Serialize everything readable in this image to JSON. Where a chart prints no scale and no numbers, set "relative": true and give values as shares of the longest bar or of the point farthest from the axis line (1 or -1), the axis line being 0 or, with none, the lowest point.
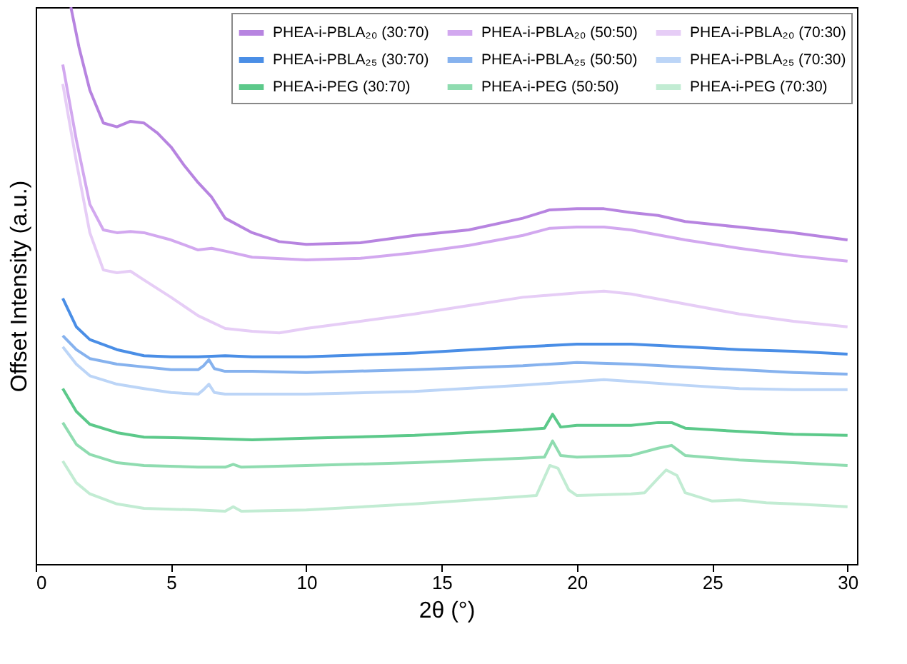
{
  "chart_data": {
    "type": "line",
    "xlabel": "2θ (°)",
    "ylabel": "Offset Intensity (a.u.)",
    "relative": true,
    "xlim": [
      0,
      30.35
    ],
    "xticks": [
      0,
      5,
      10,
      15,
      20,
      25,
      30
    ],
    "grid": false,
    "legend": "top right",
    "line_style": "solid",
    "marker": "none",
    "series": [
      {
        "name": "PHEA-i-PBLA₂₀ (30:70)",
        "color": "#b784e0",
        "x": [
          1.3,
          1.6,
          2,
          2.5,
          3,
          3.5,
          4,
          4.5,
          5,
          5.5,
          6,
          6.5,
          7,
          8,
          9,
          10,
          12,
          14,
          16,
          18,
          19,
          20,
          21,
          22,
          23,
          24,
          26,
          28,
          30
        ],
        "values": [
          1.0,
          0.928,
          0.851,
          0.792,
          0.785,
          0.795,
          0.792,
          0.774,
          0.749,
          0.715,
          0.685,
          0.659,
          0.621,
          0.595,
          0.579,
          0.574,
          0.577,
          0.59,
          0.6,
          0.621,
          0.636,
          0.638,
          0.638,
          0.631,
          0.626,
          0.615,
          0.605,
          0.595,
          0.582
        ]
      },
      {
        "name": "PHEA-i-PBLA₂₀ (50:50)",
        "color": "#d2a8ef",
        "x": [
          1,
          1.5,
          2,
          2.5,
          3,
          3.5,
          4,
          5,
          6,
          6.5,
          7,
          8,
          10,
          12,
          14,
          16,
          18,
          19,
          20,
          21,
          22,
          24,
          26,
          28,
          30
        ],
        "values": [
          0.897,
          0.762,
          0.646,
          0.6,
          0.595,
          0.597,
          0.595,
          0.582,
          0.564,
          0.567,
          0.562,
          0.551,
          0.546,
          0.549,
          0.559,
          0.572,
          0.59,
          0.603,
          0.605,
          0.605,
          0.6,
          0.582,
          0.567,
          0.554,
          0.544
        ]
      },
      {
        "name": "PHEA-i-PBLA₂₀ (70:30)",
        "color": "#e6cdf6",
        "x": [
          1,
          1.5,
          2,
          2.5,
          3,
          3.5,
          4,
          5,
          6,
          7,
          8,
          9,
          10,
          12,
          14,
          16,
          18,
          20,
          21,
          22,
          24,
          26,
          28,
          30
        ],
        "values": [
          0.862,
          0.723,
          0.595,
          0.528,
          0.523,
          0.526,
          0.51,
          0.479,
          0.446,
          0.423,
          0.418,
          0.415,
          0.423,
          0.436,
          0.449,
          0.464,
          0.479,
          0.487,
          0.49,
          0.485,
          0.467,
          0.449,
          0.436,
          0.426
        ]
      },
      {
        "name": "PHEA-i-PBLA₂₅ (30:70)",
        "color": "#4a8ee6",
        "x": [
          1,
          1.5,
          2,
          3,
          4,
          5,
          6,
          7,
          8,
          10,
          14,
          18,
          20,
          22,
          24,
          26,
          28,
          30
        ],
        "values": [
          0.477,
          0.426,
          0.403,
          0.385,
          0.374,
          0.372,
          0.372,
          0.374,
          0.372,
          0.372,
          0.379,
          0.39,
          0.395,
          0.395,
          0.39,
          0.385,
          0.382,
          0.377
        ]
      },
      {
        "name": "PHEA-i-PBLA₂₅ (50:50)",
        "color": "#86b2ee",
        "x": [
          1,
          1.5,
          2,
          3,
          4,
          5,
          6,
          6.2,
          6.4,
          6.6,
          7,
          8,
          10,
          14,
          18,
          20,
          22,
          24,
          26,
          28,
          30
        ],
        "values": [
          0.41,
          0.385,
          0.369,
          0.359,
          0.354,
          0.349,
          0.349,
          0.356,
          0.367,
          0.351,
          0.346,
          0.346,
          0.344,
          0.349,
          0.356,
          0.362,
          0.359,
          0.354,
          0.349,
          0.344,
          0.341
        ]
      },
      {
        "name": "PHEA-i-PBLA₂₅ (70:30)",
        "color": "#bcd5f7",
        "x": [
          1,
          1.5,
          2,
          3,
          4,
          5,
          6,
          6.2,
          6.4,
          6.6,
          7,
          8,
          10,
          14,
          18,
          20,
          21,
          22,
          24,
          26,
          28,
          30
        ],
        "values": [
          0.39,
          0.359,
          0.338,
          0.323,
          0.315,
          0.308,
          0.305,
          0.313,
          0.323,
          0.308,
          0.305,
          0.305,
          0.305,
          0.31,
          0.321,
          0.328,
          0.331,
          0.328,
          0.321,
          0.315,
          0.313,
          0.313
        ]
      },
      {
        "name": "PHEA-i-PEG (30:70)",
        "color": "#5cc98a",
        "x": [
          1,
          1.5,
          2,
          3,
          4,
          6,
          8,
          10,
          14,
          18,
          18.8,
          19.1,
          19.4,
          20,
          22,
          23,
          23.5,
          24,
          26,
          28,
          30
        ],
        "values": [
          0.315,
          0.274,
          0.251,
          0.236,
          0.228,
          0.226,
          0.223,
          0.226,
          0.231,
          0.241,
          0.244,
          0.269,
          0.246,
          0.249,
          0.249,
          0.254,
          0.254,
          0.244,
          0.238,
          0.233,
          0.231
        ]
      },
      {
        "name": "PHEA-i-PEG (50:50)",
        "color": "#8fdcb0",
        "x": [
          1,
          1.5,
          2,
          3,
          4,
          6,
          7,
          7.3,
          7.6,
          10,
          14,
          18,
          18.8,
          19.1,
          19.4,
          20,
          22,
          23,
          23.5,
          24,
          26,
          28,
          30
        ],
        "values": [
          0.254,
          0.215,
          0.197,
          0.182,
          0.177,
          0.174,
          0.174,
          0.179,
          0.174,
          0.177,
          0.182,
          0.19,
          0.192,
          0.221,
          0.195,
          0.192,
          0.195,
          0.208,
          0.213,
          0.195,
          0.187,
          0.182,
          0.177
        ]
      },
      {
        "name": "PHEA-i-PEG (70:30)",
        "color": "#c2ecd3",
        "x": [
          1,
          1.5,
          2,
          3,
          4,
          6,
          7,
          7.3,
          7.6,
          10,
          14,
          17,
          18.5,
          19,
          19.3,
          19.7,
          20,
          22,
          22.5,
          23,
          23.3,
          23.7,
          24,
          25,
          26,
          27,
          28,
          30
        ],
        "values": [
          0.185,
          0.146,
          0.126,
          0.108,
          0.1,
          0.097,
          0.095,
          0.103,
          0.095,
          0.097,
          0.108,
          0.118,
          0.123,
          0.177,
          0.172,
          0.133,
          0.123,
          0.126,
          0.128,
          0.154,
          0.169,
          0.159,
          0.128,
          0.113,
          0.115,
          0.11,
          0.108,
          0.103
        ]
      }
    ]
  }
}
